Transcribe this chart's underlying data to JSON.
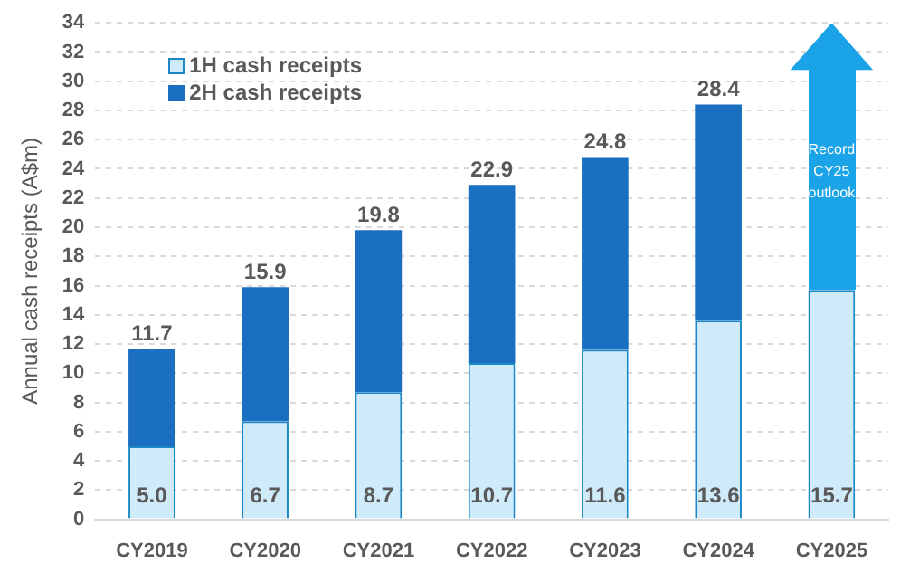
{
  "chart_data": {
    "type": "bar",
    "stacked": true,
    "ylabel": "Annual cash receipts (A$m)",
    "categories": [
      "CY2019",
      "CY2020",
      "CY2021",
      "CY2022",
      "CY2023",
      "CY2024",
      "CY2025"
    ],
    "series": [
      {
        "name": "1H cash receipts",
        "color": "#cfeaf8",
        "values": [
          5.0,
          6.7,
          8.7,
          10.7,
          11.6,
          13.6,
          15.7
        ],
        "value_labels": [
          "5.0",
          "6.7",
          "8.7",
          "10.7",
          "11.6",
          "13.6",
          "15.7"
        ]
      },
      {
        "name": "2H cash receipts",
        "color": "#1a6fc0",
        "values": [
          6.7,
          9.2,
          11.1,
          12.2,
          13.2,
          14.8,
          null
        ]
      }
    ],
    "totals": [
      "11.7",
      "15.9",
      "19.8",
      "22.9",
      "24.8",
      "28.4",
      null
    ],
    "annotations": [
      "Record CY25 outlook"
    ],
    "ylim": [
      0,
      34
    ],
    "yticks": [
      0,
      2,
      4,
      6,
      8,
      10,
      12,
      14,
      16,
      18,
      20,
      22,
      24,
      26,
      28,
      30,
      32,
      34
    ],
    "grid": "y",
    "legend": "top left"
  }
}
